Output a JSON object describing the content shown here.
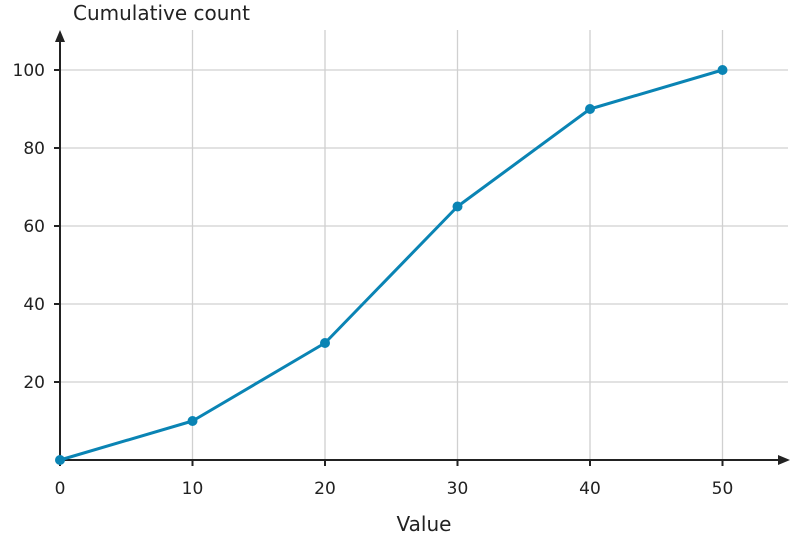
{
  "chart_data": {
    "type": "line",
    "title": "",
    "xlabel": "Value",
    "ylabel": "Cumulative count",
    "x": [
      0,
      10,
      20,
      30,
      40,
      50
    ],
    "series": [
      {
        "values": [
          0,
          10,
          30,
          65,
          90,
          100
        ]
      }
    ],
    "x_ticks": [
      0,
      10,
      20,
      30,
      40,
      50
    ],
    "y_ticks": [
      20,
      40,
      60,
      80,
      100
    ],
    "xlim": [
      0,
      55
    ],
    "ylim": [
      0,
      110
    ],
    "grid": true,
    "line_color": "#0a84b4",
    "grid_color": "#d0d0d0",
    "axis_color": "#222222"
  }
}
